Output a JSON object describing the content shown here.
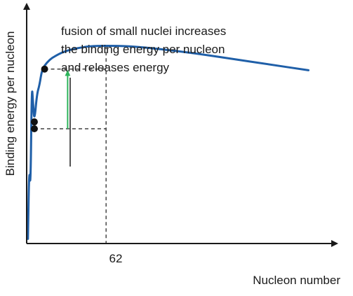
{
  "chart_data": {
    "type": "line",
    "title": "",
    "xlabel": "Nucleon number",
    "ylabel": "Binding energy per nucleon",
    "xlim": [
      0,
      240
    ],
    "ylim": [
      0,
      10
    ],
    "x_ticks": [
      {
        "value": 62,
        "label": "62"
      }
    ],
    "grid": false,
    "series": [
      {
        "color": "#1f5fa8",
        "x": [
          1,
          2,
          3,
          4,
          5,
          6,
          8,
          10,
          12,
          16,
          20,
          25,
          30,
          40,
          50,
          62,
          80,
          100,
          130,
          160,
          190,
          220
        ],
        "y": [
          0.2,
          3.4,
          2.3,
          7.0,
          6.1,
          5.3,
          6.5,
          6.9,
          7.6,
          7.9,
          8.1,
          8.25,
          8.38,
          8.52,
          8.6,
          8.62,
          8.6,
          8.5,
          8.3,
          8.05,
          7.8,
          7.55
        ]
      }
    ],
    "highlight_points": [
      {
        "x": 6,
        "y": 5.3
      },
      {
        "x": 6,
        "y": 5.0
      },
      {
        "x": 14,
        "y": 7.6
      }
    ],
    "reference_lines": {
      "lower_level_y": 5.0,
      "upper_level_y": 7.6,
      "vertical_x": 62
    },
    "arrow": {
      "x": 32,
      "from_y": 5.0,
      "to_y": 7.6,
      "color": "#2db35a"
    },
    "annotation": {
      "lines": [
        "fusion of small nuclei increases",
        "the binding energy per nucleon",
        "and releases energy"
      ]
    }
  }
}
